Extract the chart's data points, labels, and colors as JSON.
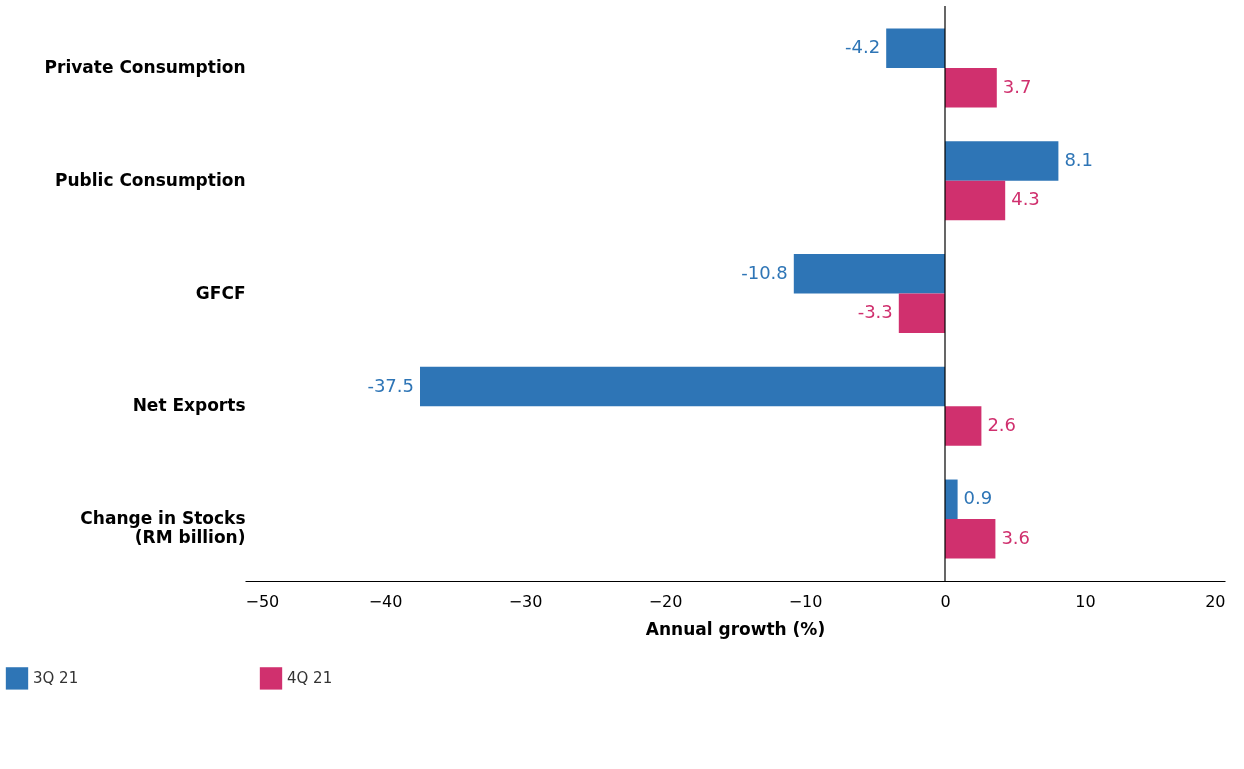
{
  "chart_data": {
    "type": "bar",
    "orientation": "horizontal",
    "xlabel": "Annual growth (%)",
    "categories": [
      "Private Consumption",
      "Public Consumption",
      "GFCF",
      "Net Exports",
      "Change in Stocks\n(RM billion)"
    ],
    "series": [
      {
        "name": "3Q 21",
        "color": "#2e75b6",
        "values": [
          -4.2,
          8.1,
          -10.8,
          -37.5,
          0.9
        ]
      },
      {
        "name": "4Q 21",
        "color": "#d0306e",
        "values": [
          3.7,
          4.3,
          -3.3,
          2.6,
          3.6
        ]
      }
    ],
    "xlim": [
      -50,
      20
    ],
    "xticks": [
      -50,
      -40,
      -30,
      -20,
      -10,
      0,
      10,
      20
    ],
    "ref_lines": [
      {
        "axis": "x",
        "value": 0,
        "color": "#000000"
      }
    ],
    "data_labels": true,
    "grid": false,
    "legend": "bottom left"
  }
}
